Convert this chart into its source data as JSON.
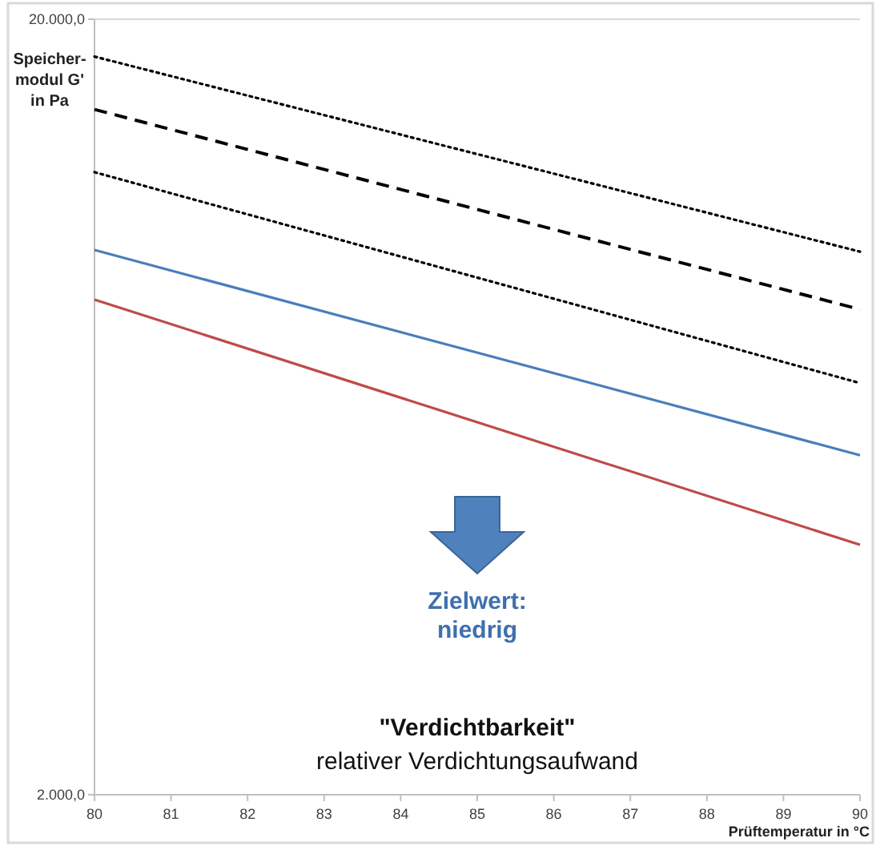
{
  "chart_data": {
    "type": "line",
    "title": "\"Verdichtbarkeit\"",
    "subtitle": "relativer Verdichtungsaufwand",
    "xlabel": "Prüftemperatur in °C",
    "ylabel": "Speicher-\nmodul G'\nin Pa",
    "annotations": [
      "Zielwert:\nniedrig"
    ],
    "x": [
      80,
      90
    ],
    "log": "y",
    "xlim": [
      80,
      90
    ],
    "xticks": [
      80,
      81,
      82,
      83,
      84,
      85,
      86,
      87,
      88,
      89,
      90
    ],
    "ylim": [
      2000,
      20000
    ],
    "yticks": [
      {
        "value": 2000,
        "label": "2.000,0"
      },
      {
        "value": 20000,
        "label": "20.000,0"
      }
    ],
    "series": [
      {
        "color": "#000000",
        "line_style": "dotted",
        "values": [
          17900,
          10030
        ]
      },
      {
        "color": "#000000",
        "line_style": "dashed",
        "values": [
          15300,
          8450
        ]
      },
      {
        "color": "#000000",
        "line_style": "dotted",
        "values": [
          12700,
          6790
        ]
      },
      {
        "color": "#4a7ebb",
        "line_style": "solid",
        "values": [
          10080,
          5480
        ]
      },
      {
        "color": "#be4b48",
        "line_style": "solid",
        "values": [
          8700,
          4200
        ]
      }
    ]
  }
}
